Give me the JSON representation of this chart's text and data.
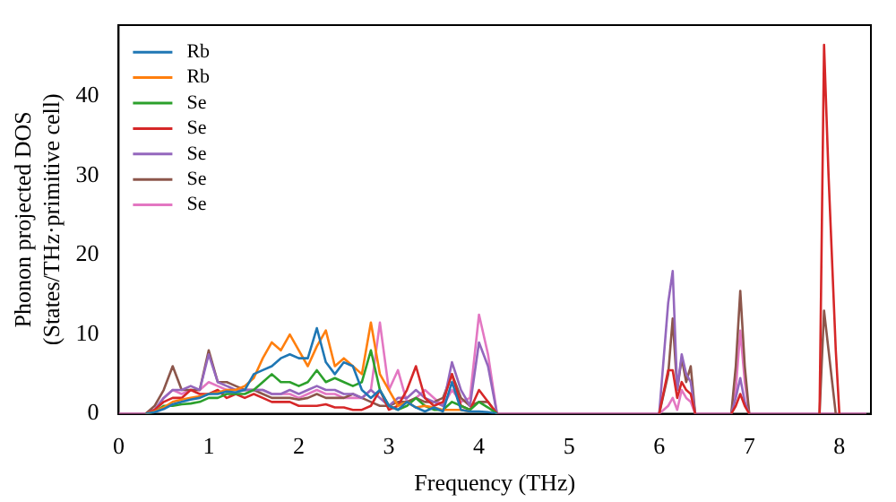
{
  "chart_data": {
    "type": "line",
    "xlabel": "Frequency (THz)",
    "ylabel": "Phonon projected DOS\n(States/THz·primitive cell)",
    "xlim": [
      0,
      8.35
    ],
    "xticks": [
      0,
      1,
      2,
      3,
      4,
      5,
      6,
      7,
      8
    ],
    "ylim": [
      0,
      49
    ],
    "yticks": [
      0,
      10,
      20,
      30,
      40
    ],
    "legend": "top left",
    "grid": false,
    "marker": "none",
    "line_style": "solid",
    "x": [
      0,
      0.1,
      0.2,
      0.3,
      0.4,
      0.5,
      0.6,
      0.7,
      0.8,
      0.9,
      1.0,
      1.1,
      1.2,
      1.3,
      1.4,
      1.5,
      1.6,
      1.7,
      1.8,
      1.9,
      2.0,
      2.1,
      2.2,
      2.3,
      2.4,
      2.5,
      2.6,
      2.7,
      2.8,
      2.9,
      3.0,
      3.1,
      3.2,
      3.3,
      3.4,
      3.5,
      3.6,
      3.7,
      3.8,
      3.9,
      4.0,
      4.1,
      4.2,
      4.3,
      5.9,
      6.0,
      6.1,
      6.15,
      6.2,
      6.25,
      6.3,
      6.35,
      6.4,
      6.5,
      6.7,
      6.8,
      6.85,
      6.9,
      6.95,
      7.0,
      7.1,
      7.7,
      7.78,
      7.83,
      7.88,
      7.96,
      8.0,
      8.3
    ],
    "series": [
      {
        "name": "Rb",
        "color": "#1f77b4",
        "values": [
          null,
          null,
          null,
          0,
          0.2,
          0.6,
          1.2,
          1.5,
          1.8,
          2,
          2.5,
          2.5,
          2.8,
          2.7,
          3,
          5,
          5.5,
          6,
          7,
          7.5,
          7,
          7,
          10.8,
          6.5,
          5,
          6.5,
          6,
          3,
          2,
          3,
          1,
          0.5,
          1.5,
          0.8,
          0.3,
          0.8,
          0.3,
          4,
          0.5,
          0.3,
          0.3,
          0.2,
          0,
          null,
          null,
          null,
          null,
          null,
          null,
          null,
          null,
          null,
          null,
          null,
          null,
          null,
          null,
          null,
          null,
          null,
          null,
          null,
          null,
          null,
          null,
          null,
          null,
          null
        ]
      },
      {
        "name": "Rb",
        "color": "#ff7f0e",
        "values": [
          null,
          null,
          null,
          0,
          0.3,
          0.8,
          1.5,
          1.8,
          2,
          2.2,
          2.5,
          2.7,
          3,
          3,
          3.5,
          4.5,
          7,
          9,
          8,
          10,
          8,
          6,
          8.5,
          10.5,
          6,
          7,
          6,
          5,
          11.5,
          5,
          3,
          1,
          1.5,
          0.8,
          1,
          0.8,
          0.5,
          0.5,
          0.5,
          0.3,
          null,
          null,
          null,
          null,
          null,
          null,
          null,
          null,
          null,
          null,
          null,
          null,
          null,
          null,
          null,
          null,
          null,
          null,
          null,
          null,
          null,
          null,
          null,
          null,
          null,
          null,
          null,
          null
        ]
      },
      {
        "name": "Se",
        "color": "#2ca02c",
        "values": [
          null,
          null,
          null,
          0,
          0.2,
          1,
          1,
          1.2,
          1.3,
          1.5,
          2,
          2,
          2.5,
          2.5,
          2.5,
          3,
          4,
          5,
          4,
          4,
          3.5,
          4,
          5.5,
          4,
          4.5,
          4,
          3.5,
          4,
          8,
          3,
          1,
          0.5,
          1,
          2,
          1,
          0.5,
          0.5,
          1.5,
          1,
          0.5,
          1.5,
          0.8,
          0,
          null,
          null,
          null,
          null,
          null,
          null,
          null,
          null,
          null,
          null,
          null,
          null,
          null,
          null,
          null,
          null,
          null,
          null,
          null,
          null,
          null,
          null,
          null,
          null,
          null
        ]
      },
      {
        "name": "Se",
        "color": "#d62728",
        "values": [
          null,
          null,
          null,
          0,
          0.5,
          1.5,
          2,
          2,
          3,
          2.5,
          2.5,
          3,
          2,
          2.5,
          2,
          2.5,
          2,
          1.5,
          1.5,
          1.5,
          1,
          1,
          1,
          1.2,
          0.8,
          0.8,
          0.5,
          0.5,
          1,
          3,
          0.5,
          1,
          3,
          6,
          2,
          1,
          1.5,
          5,
          1,
          0.5,
          3,
          1.5,
          0,
          null,
          null,
          0,
          5.5,
          5.5,
          2,
          4,
          3,
          2.5,
          0,
          null,
          null,
          0,
          1,
          2.5,
          1,
          0,
          null,
          null,
          0,
          46.5,
          30,
          8,
          0,
          null
        ]
      },
      {
        "name": "Se",
        "color": "#9467bd",
        "values": [
          null,
          null,
          null,
          0,
          0.5,
          2,
          3,
          3,
          3.5,
          3,
          7.5,
          4,
          3.5,
          3,
          3,
          3,
          3,
          2.5,
          2.5,
          3,
          2.5,
          3,
          3.5,
          3,
          3,
          2.5,
          2.5,
          2,
          3,
          2,
          1,
          2,
          2,
          3,
          2,
          1.5,
          1,
          6.5,
          3,
          1,
          9,
          6,
          0,
          null,
          null,
          0,
          14,
          18,
          3,
          7.5,
          5,
          4,
          0,
          null,
          null,
          0,
          2,
          4.5,
          1.5,
          0,
          null,
          null,
          null,
          null,
          null,
          null,
          null,
          null
        ]
      },
      {
        "name": "Se",
        "color": "#8c564b",
        "values": [
          null,
          null,
          null,
          0,
          1,
          3,
          6,
          3,
          3,
          3,
          8,
          4,
          4,
          3.5,
          3,
          3,
          2.5,
          2,
          2,
          2,
          1.8,
          2,
          2.5,
          2,
          2,
          2,
          2.5,
          2,
          1.5,
          1,
          1,
          1.5,
          1.5,
          2,
          1.5,
          1.5,
          2,
          5,
          2,
          1,
          1.5,
          1.5,
          0,
          null,
          null,
          0,
          5,
          12,
          3,
          7,
          4,
          6,
          0,
          null,
          null,
          0,
          6,
          15.5,
          6,
          0,
          null,
          null,
          0,
          13,
          8,
          0,
          null,
          null
        ]
      },
      {
        "name": "Se",
        "color": "#e377c2",
        "values": [
          0,
          0,
          0,
          0,
          0.5,
          2,
          3,
          2.5,
          3,
          3,
          4,
          3.5,
          3,
          3,
          3,
          3,
          3,
          2.5,
          2.5,
          2.5,
          2,
          2.5,
          3,
          2.5,
          2.5,
          2,
          2,
          2,
          3,
          11.5,
          3,
          5.5,
          1.5,
          2,
          3,
          2,
          1,
          3,
          1.5,
          2,
          12.5,
          7.5,
          0,
          0,
          0,
          0,
          1,
          2,
          0.5,
          3,
          2,
          1.5,
          0,
          0,
          0,
          0,
          3,
          10.5,
          4,
          0,
          0,
          0,
          0,
          0,
          0,
          0,
          0,
          0
        ]
      }
    ]
  }
}
